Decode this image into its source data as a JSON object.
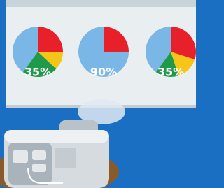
{
  "chart_data": [
    {
      "type": "pie",
      "values": [
        25,
        12,
        23,
        40
      ],
      "colors": [
        "#e8202a",
        "#f5c518",
        "#1f9a4a",
        "#7ab6e6"
      ],
      "label": "35%"
    },
    {
      "type": "pie",
      "values": [
        25,
        75
      ],
      "colors": [
        "#e8202a",
        "#7ab6e6"
      ],
      "label": "90%"
    },
    {
      "type": "pie",
      "values": [
        30,
        15,
        15,
        40
      ],
      "colors": [
        "#e8202a",
        "#f5c518",
        "#1f9a4a",
        "#7ab6e6"
      ],
      "label": "35%"
    }
  ]
}
